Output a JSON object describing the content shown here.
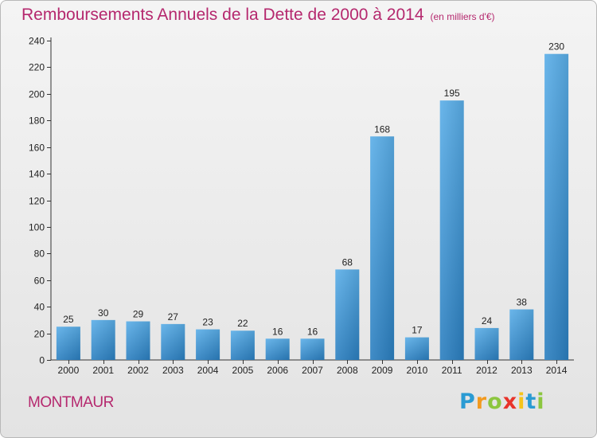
{
  "header": {
    "title": "Remboursements Annuels de la Dette de 2000 à 2014",
    "unit": "(en milliers d'€)"
  },
  "footer": {
    "commune": "MONTMAUR",
    "logo_letters": [
      "P",
      "r",
      "o",
      "x",
      "i",
      "t",
      "i"
    ]
  },
  "colors": {
    "title": "#b5286e",
    "bar_top": "#5aaee8",
    "bar_bottom": "#2b7fc0",
    "axis": "#333333"
  },
  "chart_data": {
    "type": "bar",
    "title": "Remboursements Annuels de la Dette de 2000 à 2014",
    "xlabel": "",
    "ylabel": "",
    "categories": [
      "2000",
      "2001",
      "2002",
      "2003",
      "2004",
      "2005",
      "2006",
      "2007",
      "2008",
      "2009",
      "2010",
      "2011",
      "2012",
      "2013",
      "2014"
    ],
    "values": [
      25,
      30,
      29,
      27,
      23,
      22,
      16,
      16,
      68,
      168,
      17,
      195,
      24,
      38,
      230
    ],
    "ylim": [
      0,
      240
    ],
    "yticks": [
      0,
      20,
      40,
      60,
      80,
      100,
      120,
      140,
      160,
      180,
      200,
      220,
      240
    ],
    "grid": false,
    "data_labels": true
  }
}
